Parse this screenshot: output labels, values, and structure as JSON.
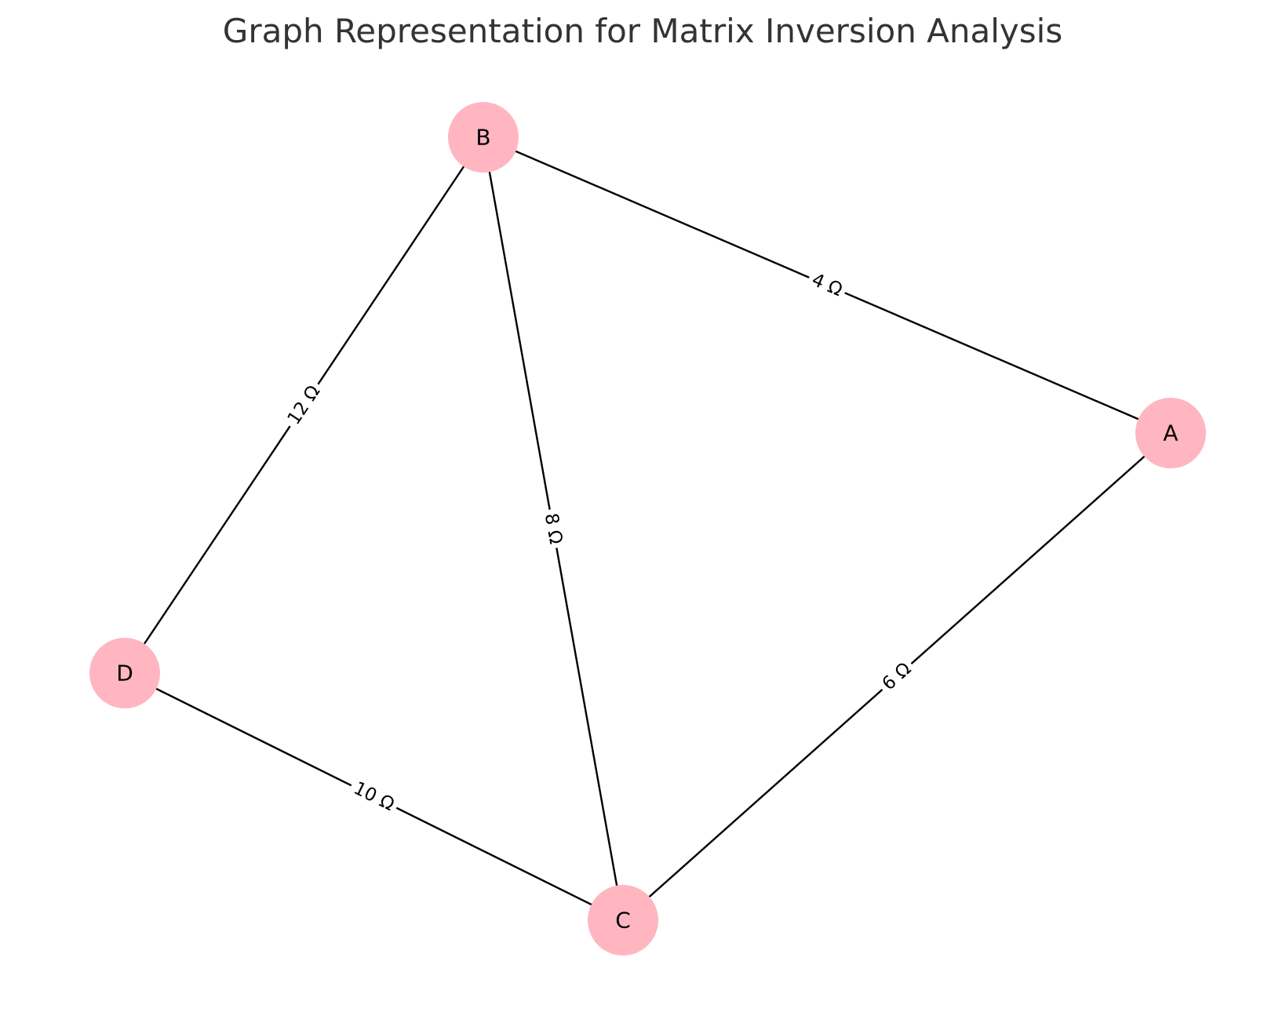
{
  "title": "Graph Representation for Matrix Inversion Analysis",
  "style": {
    "node_color": "#FFB6C1",
    "edge_color": "#000000",
    "title_color": "#333333"
  },
  "nodes": [
    {
      "id": "A",
      "label": "A"
    },
    {
      "id": "B",
      "label": "B"
    },
    {
      "id": "C",
      "label": "C"
    },
    {
      "id": "D",
      "label": "D"
    }
  ],
  "edges": [
    {
      "source": "B",
      "target": "A",
      "label": "4 Ω"
    },
    {
      "source": "B",
      "target": "C",
      "label": "8 Ω"
    },
    {
      "source": "B",
      "target": "D",
      "label": "12 Ω"
    },
    {
      "source": "A",
      "target": "C",
      "label": "6 Ω"
    },
    {
      "source": "D",
      "target": "C",
      "label": "10 Ω"
    }
  ]
}
